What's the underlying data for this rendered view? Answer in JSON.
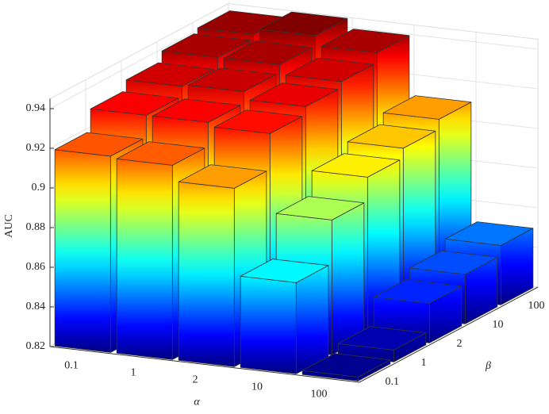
{
  "chart_data": {
    "type": "bar3d",
    "x_label": "α",
    "y_label": "β",
    "z_label": "AUC",
    "x_categories": [
      "0.1",
      "1",
      "2",
      "10",
      "100"
    ],
    "y_categories": [
      "0.1",
      "1",
      "2",
      "10",
      "100"
    ],
    "values": [
      [
        0.919,
        0.918,
        0.91,
        0.866,
        0.822
      ],
      [
        0.93,
        0.93,
        0.928,
        0.888,
        0.826
      ],
      [
        0.935,
        0.936,
        0.932,
        0.9,
        0.84
      ],
      [
        0.94,
        0.94,
        0.935,
        0.905,
        0.845
      ],
      [
        0.942,
        0.945,
        0.94,
        0.91,
        0.85
      ]
    ],
    "zlim": [
      0.82,
      0.945
    ],
    "zticks": [
      0.82,
      0.84,
      0.86,
      0.88,
      0.9,
      0.92,
      0.94
    ],
    "grid": true,
    "colormap": "jet"
  }
}
